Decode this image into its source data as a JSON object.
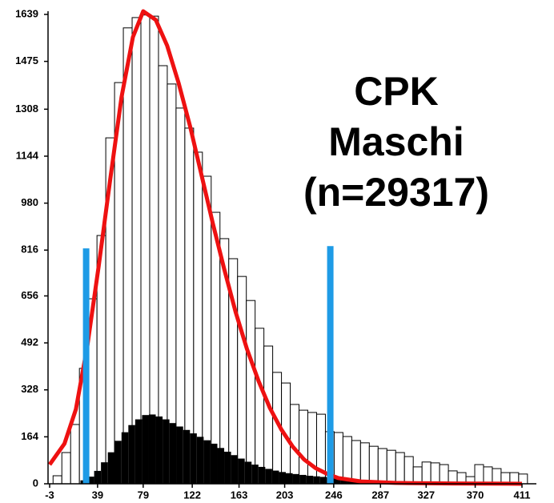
{
  "chart_data": {
    "type": "histogram",
    "title": [
      "CPK",
      "Maschi",
      "(n=29317)"
    ],
    "bins": [
      0,
      7.7,
      15.4,
      23.1,
      30.8,
      38.5,
      46.2,
      53.9,
      61.6,
      69.3,
      77,
      84.7,
      92.4,
      100.1,
      107.8,
      115.5,
      123.2,
      130.9,
      138.6,
      146.3,
      154,
      161.7,
      169.4,
      177.1,
      184.8,
      192.5,
      200.2,
      207.9,
      215.6,
      223.3,
      231,
      238.7,
      246.4,
      254.1,
      261.8,
      269.5,
      277.2,
      284.9,
      292.6,
      300.3,
      308,
      315.7,
      323.4,
      331.1,
      338.8,
      346.5,
      354.2,
      361.9,
      369.6,
      377.3,
      385,
      392.7,
      400.4,
      408.1,
      415.8
    ],
    "values": [
      28,
      109,
      207,
      403,
      646,
      867,
      1208,
      1401,
      1592,
      1628,
      1637,
      1633,
      1460,
      1396,
      1312,
      1242,
      1158,
      1074,
      948,
      856,
      786,
      724,
      640,
      543,
      481,
      389,
      352,
      277,
      257,
      249,
      243,
      182,
      179,
      165,
      151,
      143,
      131,
      123,
      117,
      109,
      95,
      59,
      76,
      73,
      67,
      45,
      39,
      25,
      67,
      59,
      53,
      39,
      39,
      34
    ],
    "color": "#ffffff",
    "fine_bins": [
      24,
      30,
      36,
      42,
      48,
      54,
      60,
      66,
      72,
      78,
      84,
      90,
      96,
      102,
      108,
      114,
      120,
      126,
      132,
      138,
      144,
      150,
      156,
      162,
      168,
      174,
      180,
      186,
      192,
      198,
      204,
      210,
      216,
      222,
      228,
      234,
      240,
      246,
      252,
      258,
      264,
      270,
      276,
      282,
      288,
      294,
      300,
      306,
      312,
      318,
      324,
      330,
      336,
      342,
      348,
      354,
      360,
      366,
      372,
      378,
      384,
      390,
      396,
      402,
      408
    ],
    "fine_values": [
      12,
      25,
      45,
      75,
      110,
      150,
      180,
      205,
      225,
      240,
      242,
      235,
      225,
      212,
      200,
      188,
      176,
      164,
      152,
      140,
      125,
      112,
      100,
      88,
      77,
      67,
      59,
      52,
      46,
      41,
      37,
      34,
      31,
      28,
      26,
      24,
      21,
      19,
      17,
      15,
      14,
      12,
      11,
      10,
      9,
      8,
      7,
      7,
      6,
      6,
      5,
      5,
      5,
      4,
      4,
      4,
      4,
      3,
      3,
      3,
      3,
      3,
      2,
      2
    ],
    "fine_color": "#000000",
    "curve": {
      "color": "#ee1111",
      "x": [
        -3,
        10,
        20,
        30,
        40,
        50,
        60,
        70,
        79,
        90,
        100,
        110,
        120,
        130,
        140,
        150,
        160,
        170,
        180,
        190,
        200,
        210,
        220,
        230,
        240,
        250,
        270,
        300,
        350,
        411
      ],
      "values": [
        67,
        140,
        260,
        480,
        760,
        1060,
        1350,
        1560,
        1650,
        1620,
        1530,
        1400,
        1250,
        1080,
        910,
        750,
        600,
        470,
        360,
        265,
        190,
        130,
        85,
        55,
        35,
        20,
        8,
        3,
        1,
        0
      ]
    },
    "limits": {
      "color": "#1e9be6",
      "x": [
        29,
        243
      ],
      "values": [
        822,
        830
      ]
    },
    "xlim": [
      -3,
      411
    ],
    "xticks": [
      -3,
      39,
      79,
      122,
      163,
      203,
      246,
      287,
      327,
      370,
      411
    ],
    "ylim": [
      0,
      1639
    ],
    "yticks": [
      0,
      164,
      328,
      492,
      656,
      816,
      980,
      1144,
      1308,
      1475,
      1639
    ]
  }
}
